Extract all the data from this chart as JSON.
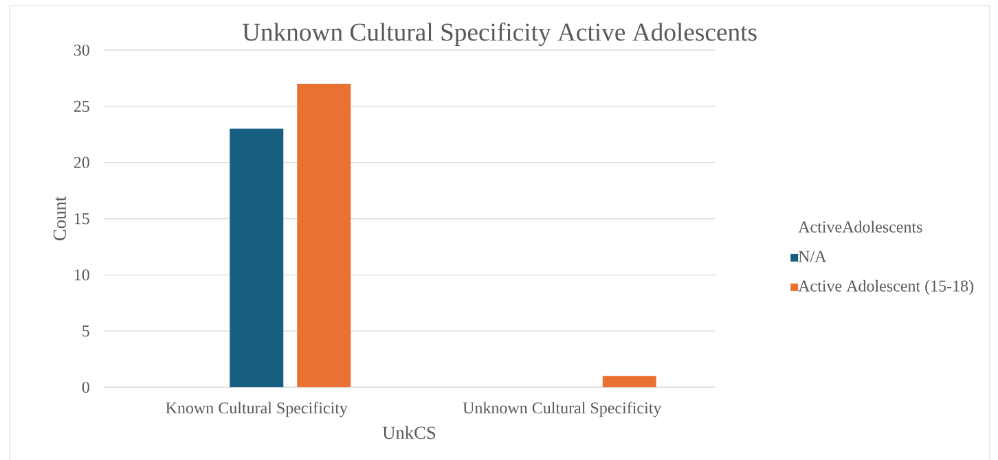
{
  "chart_data": {
    "type": "bar",
    "title": "Unknown Cultural Specificity Active Adolescents",
    "xlabel": "UnkCS",
    "ylabel": "Count",
    "legend_title": "ActiveAdolescents",
    "categories": [
      "Known Cultural Specificity",
      "Unknown Cultural Specificity"
    ],
    "series": [
      {
        "name": "N/A",
        "color": "#175f80",
        "values": [
          23,
          null
        ]
      },
      {
        "name": "Active Adolescent (15-18)",
        "color": "#e97132",
        "values": [
          27,
          1
        ]
      }
    ],
    "ylim": [
      0,
      30
    ],
    "yticks": [
      0,
      5,
      10,
      15,
      20,
      25,
      30
    ],
    "grid": "y",
    "legend": "right"
  }
}
